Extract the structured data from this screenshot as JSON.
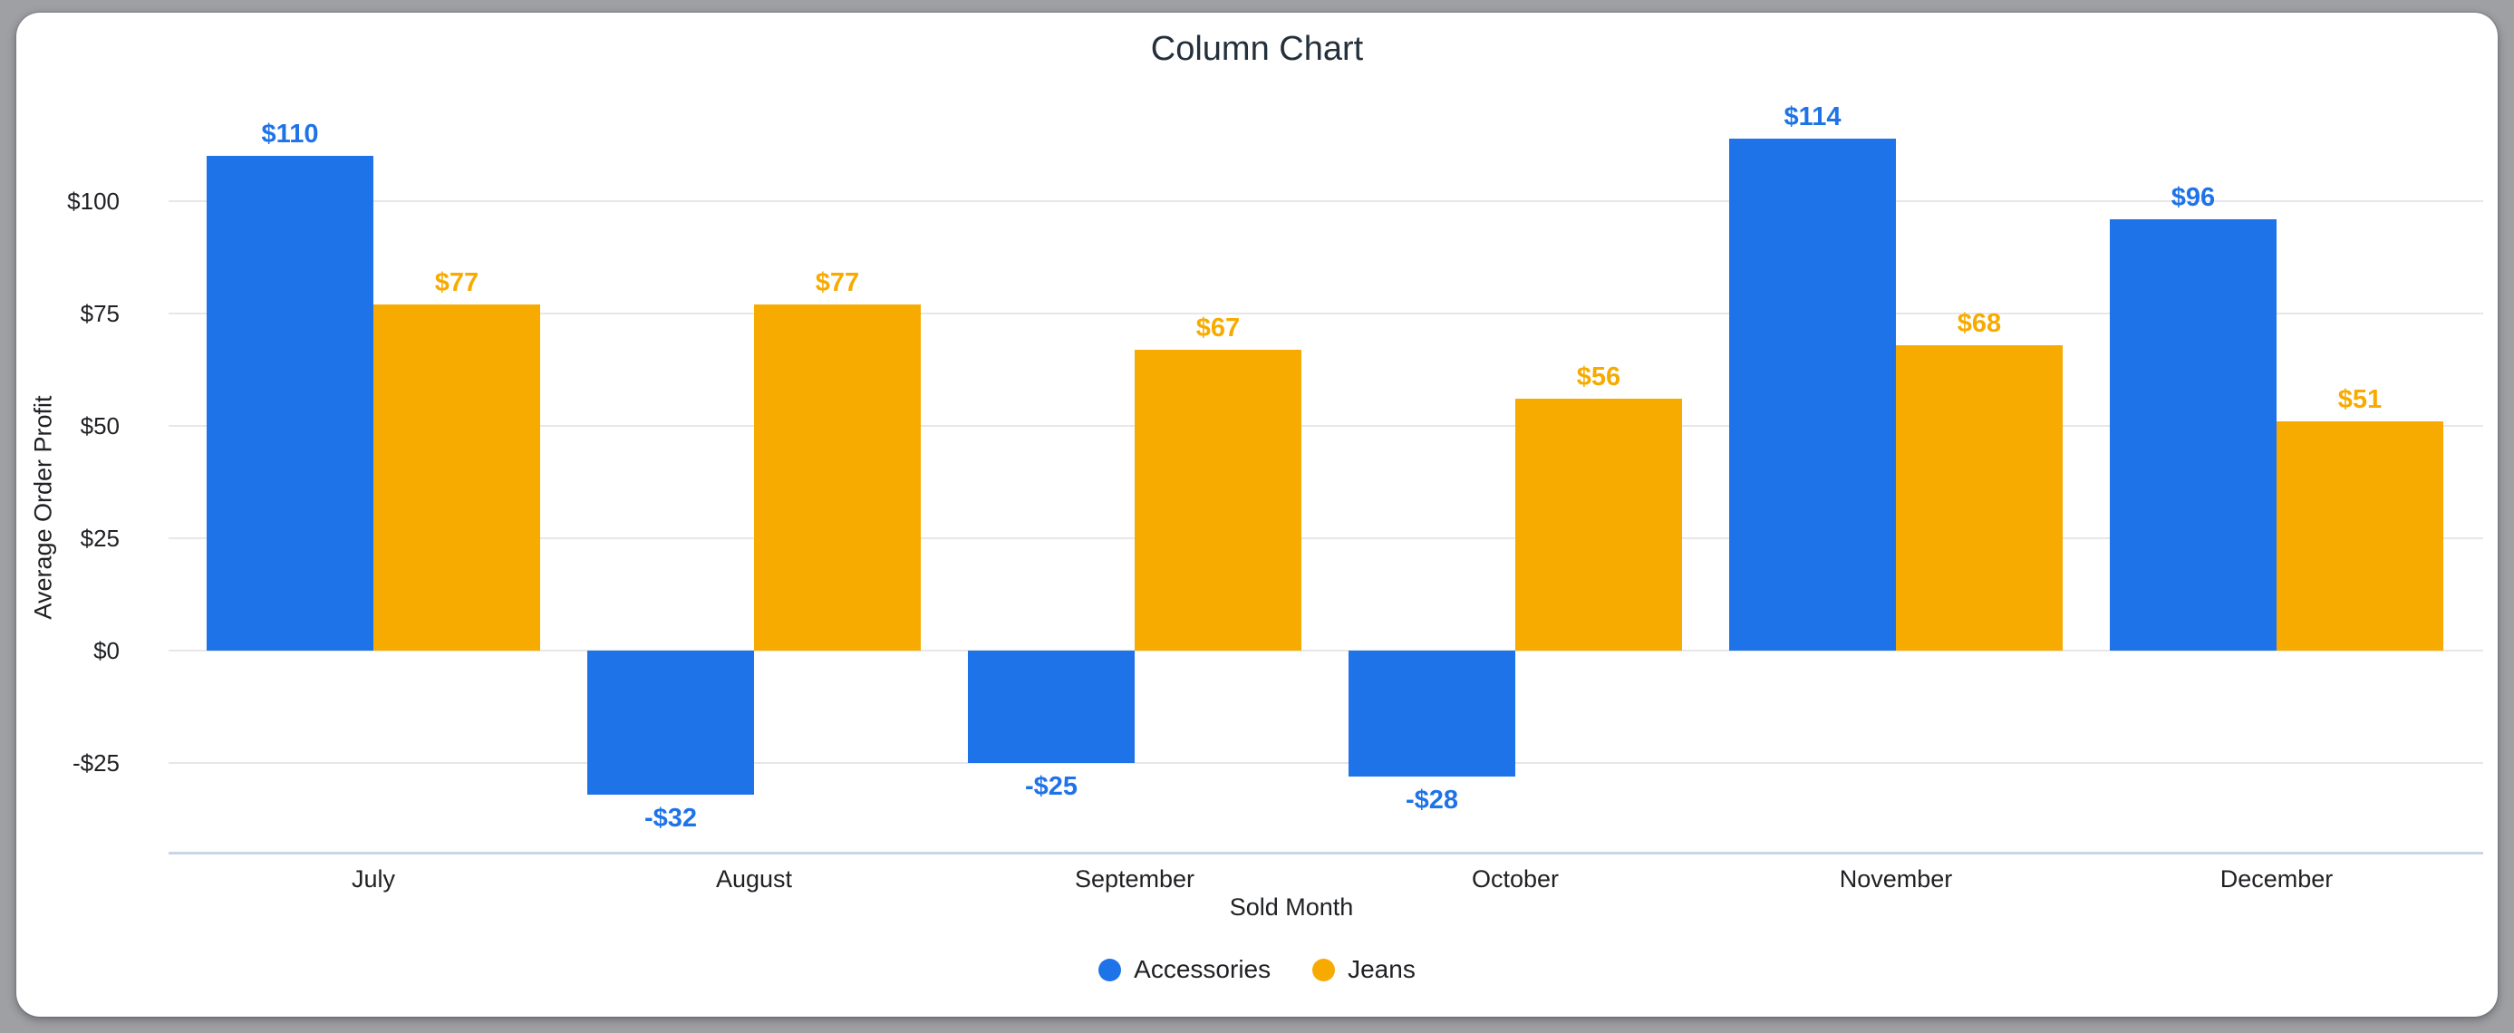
{
  "window": {
    "background_color": "#9fa0a4",
    "card_color": "#ffffff"
  },
  "colors": {
    "accent_blue": "#1f73e8",
    "accent_orange": "#f7ab00",
    "grid": "#e7e7e7",
    "baseline": "#ccd4e8",
    "title_text": "#24303c",
    "axis_text": "#202124"
  },
  "chart_data": {
    "type": "bar",
    "title": "Column Chart",
    "xlabel": "Sold Month",
    "ylabel": "Average Order Profit",
    "categories": [
      "July",
      "August",
      "September",
      "October",
      "November",
      "December"
    ],
    "series": [
      {
        "name": "Accessories",
        "color": "#1f73e8",
        "values": [
          110,
          -32,
          -25,
          -28,
          114,
          96
        ],
        "data_labels": [
          "$110",
          "-$32",
          "-$25",
          "-$28",
          "$114",
          "$96"
        ]
      },
      {
        "name": "Jeans",
        "color": "#f7ab00",
        "values": [
          77,
          77,
          67,
          56,
          68,
          51
        ],
        "data_labels": [
          "$77",
          "$77",
          "$67",
          "$56",
          "$68",
          "$51"
        ]
      }
    ],
    "y_ticks": [
      {
        "value": 100,
        "label": "$100"
      },
      {
        "value": 75,
        "label": "$75"
      },
      {
        "value": 50,
        "label": "$50"
      },
      {
        "value": 25,
        "label": "$25"
      },
      {
        "value": 0,
        "label": "$0"
      },
      {
        "value": -25,
        "label": "-$25"
      }
    ],
    "ylim": [
      -45,
      133
    ],
    "grid": true,
    "legend_position": "bottom"
  },
  "legend": {
    "items": [
      {
        "label": "Accessories",
        "color": "#1f73e8"
      },
      {
        "label": "Jeans",
        "color": "#f7ab00"
      }
    ]
  }
}
